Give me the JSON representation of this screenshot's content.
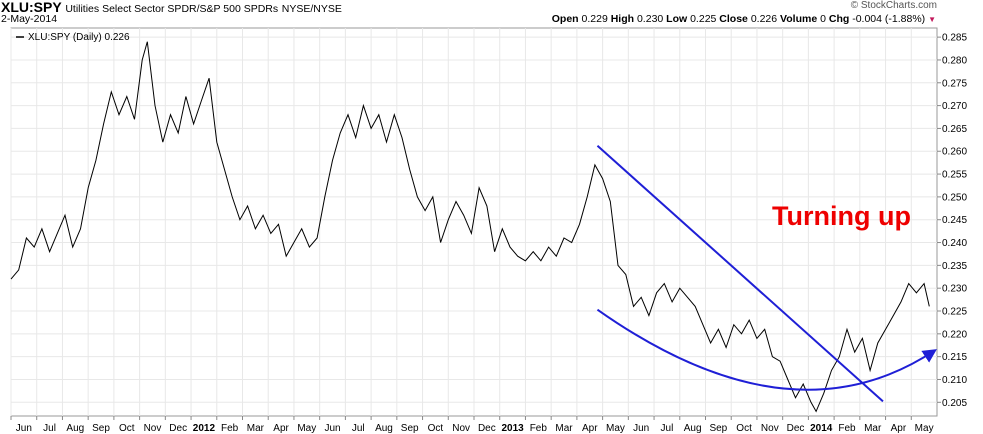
{
  "header": {
    "symbol": "XLU:SPY",
    "description": "Utilities Select Sector SPDR/S&P 500 SPDRs",
    "exchange": "NYSE/NYSE",
    "date": "2-May-2014",
    "brand": "© StockCharts.com",
    "open_label": "Open",
    "open": "0.229",
    "high_label": "High",
    "high": "0.230",
    "low_label": "Low",
    "low": "0.225",
    "close_label": "Close",
    "close": "0.226",
    "volume_label": "Volume",
    "volume": "0",
    "chg_label": "Chg",
    "chg": "-0.004 (-1.88%)"
  },
  "chart_data": {
    "type": "line",
    "legend": "XLU:SPY (Daily) 0.226",
    "annotation": "Turning up",
    "colors": {
      "line": "#000000",
      "drawn": "#1f1fd6",
      "annotation": "#ee0000",
      "grid": "#e8e8e8"
    },
    "ylim": [
      0.202,
      0.287
    ],
    "y_ticks": [
      "0.205",
      "0.210",
      "0.215",
      "0.220",
      "0.225",
      "0.230",
      "0.235",
      "0.240",
      "0.245",
      "0.250",
      "0.255",
      "0.260",
      "0.265",
      "0.270",
      "0.275",
      "0.280",
      "0.285"
    ],
    "x_ticks": [
      {
        "label": "Jun",
        "bold": false
      },
      {
        "label": "Jul",
        "bold": false
      },
      {
        "label": "Aug",
        "bold": false
      },
      {
        "label": "Sep",
        "bold": false
      },
      {
        "label": "Oct",
        "bold": false
      },
      {
        "label": "Nov",
        "bold": false
      },
      {
        "label": "Dec",
        "bold": false
      },
      {
        "label": "2012",
        "bold": true
      },
      {
        "label": "Feb",
        "bold": false
      },
      {
        "label": "Mar",
        "bold": false
      },
      {
        "label": "Apr",
        "bold": false
      },
      {
        "label": "May",
        "bold": false
      },
      {
        "label": "Jun",
        "bold": false
      },
      {
        "label": "Jul",
        "bold": false
      },
      {
        "label": "Aug",
        "bold": false
      },
      {
        "label": "Sep",
        "bold": false
      },
      {
        "label": "Oct",
        "bold": false
      },
      {
        "label": "Nov",
        "bold": false
      },
      {
        "label": "Dec",
        "bold": false
      },
      {
        "label": "2013",
        "bold": true
      },
      {
        "label": "Feb",
        "bold": false
      },
      {
        "label": "Mar",
        "bold": false
      },
      {
        "label": "Apr",
        "bold": false
      },
      {
        "label": "May",
        "bold": false
      },
      {
        "label": "Jun",
        "bold": false
      },
      {
        "label": "Jul",
        "bold": false
      },
      {
        "label": "Aug",
        "bold": false
      },
      {
        "label": "Sep",
        "bold": false
      },
      {
        "label": "Oct",
        "bold": false
      },
      {
        "label": "Nov",
        "bold": false
      },
      {
        "label": "Dec",
        "bold": false
      },
      {
        "label": "2014",
        "bold": true
      },
      {
        "label": "Feb",
        "bold": false
      },
      {
        "label": "Mar",
        "bold": false
      },
      {
        "label": "Apr",
        "bold": false
      },
      {
        "label": "May",
        "bold": false
      }
    ],
    "x_range": [
      0,
      36
    ],
    "series": [
      {
        "points": [
          [
            0.0,
            0.232
          ],
          [
            0.3,
            0.234
          ],
          [
            0.6,
            0.241
          ],
          [
            0.9,
            0.239
          ],
          [
            1.2,
            0.243
          ],
          [
            1.5,
            0.238
          ],
          [
            1.8,
            0.242
          ],
          [
            2.1,
            0.246
          ],
          [
            2.4,
            0.239
          ],
          [
            2.7,
            0.243
          ],
          [
            3.0,
            0.252
          ],
          [
            3.3,
            0.258
          ],
          [
            3.6,
            0.266
          ],
          [
            3.9,
            0.273
          ],
          [
            4.2,
            0.268
          ],
          [
            4.5,
            0.272
          ],
          [
            4.8,
            0.267
          ],
          [
            5.1,
            0.28
          ],
          [
            5.3,
            0.284
          ],
          [
            5.6,
            0.27
          ],
          [
            5.9,
            0.262
          ],
          [
            6.2,
            0.268
          ],
          [
            6.5,
            0.264
          ],
          [
            6.8,
            0.272
          ],
          [
            7.1,
            0.266
          ],
          [
            7.4,
            0.271
          ],
          [
            7.7,
            0.276
          ],
          [
            8.0,
            0.262
          ],
          [
            8.3,
            0.256
          ],
          [
            8.6,
            0.25
          ],
          [
            8.9,
            0.245
          ],
          [
            9.2,
            0.248
          ],
          [
            9.5,
            0.243
          ],
          [
            9.8,
            0.246
          ],
          [
            10.1,
            0.242
          ],
          [
            10.4,
            0.244
          ],
          [
            10.7,
            0.237
          ],
          [
            11.0,
            0.24
          ],
          [
            11.3,
            0.243
          ],
          [
            11.6,
            0.239
          ],
          [
            11.9,
            0.241
          ],
          [
            12.2,
            0.25
          ],
          [
            12.5,
            0.258
          ],
          [
            12.8,
            0.264
          ],
          [
            13.1,
            0.268
          ],
          [
            13.4,
            0.263
          ],
          [
            13.7,
            0.27
          ],
          [
            14.0,
            0.265
          ],
          [
            14.3,
            0.268
          ],
          [
            14.6,
            0.262
          ],
          [
            14.9,
            0.268
          ],
          [
            15.2,
            0.263
          ],
          [
            15.5,
            0.256
          ],
          [
            15.8,
            0.25
          ],
          [
            16.1,
            0.247
          ],
          [
            16.4,
            0.25
          ],
          [
            16.7,
            0.24
          ],
          [
            17.0,
            0.245
          ],
          [
            17.3,
            0.249
          ],
          [
            17.6,
            0.246
          ],
          [
            17.9,
            0.242
          ],
          [
            18.2,
            0.252
          ],
          [
            18.5,
            0.248
          ],
          [
            18.8,
            0.238
          ],
          [
            19.1,
            0.243
          ],
          [
            19.4,
            0.239
          ],
          [
            19.7,
            0.237
          ],
          [
            20.0,
            0.236
          ],
          [
            20.3,
            0.238
          ],
          [
            20.6,
            0.236
          ],
          [
            20.9,
            0.239
          ],
          [
            21.2,
            0.237
          ],
          [
            21.5,
            0.241
          ],
          [
            21.8,
            0.24
          ],
          [
            22.1,
            0.244
          ],
          [
            22.4,
            0.25
          ],
          [
            22.7,
            0.257
          ],
          [
            23.0,
            0.254
          ],
          [
            23.3,
            0.249
          ],
          [
            23.6,
            0.235
          ],
          [
            23.9,
            0.233
          ],
          [
            24.2,
            0.226
          ],
          [
            24.5,
            0.228
          ],
          [
            24.8,
            0.224
          ],
          [
            25.1,
            0.229
          ],
          [
            25.4,
            0.231
          ],
          [
            25.7,
            0.227
          ],
          [
            26.0,
            0.23
          ],
          [
            26.3,
            0.228
          ],
          [
            26.6,
            0.226
          ],
          [
            26.9,
            0.222
          ],
          [
            27.2,
            0.218
          ],
          [
            27.5,
            0.221
          ],
          [
            27.8,
            0.217
          ],
          [
            28.1,
            0.222
          ],
          [
            28.4,
            0.22
          ],
          [
            28.7,
            0.223
          ],
          [
            29.0,
            0.219
          ],
          [
            29.3,
            0.221
          ],
          [
            29.6,
            0.215
          ],
          [
            29.9,
            0.214
          ],
          [
            30.2,
            0.21
          ],
          [
            30.5,
            0.206
          ],
          [
            30.8,
            0.209
          ],
          [
            31.1,
            0.205
          ],
          [
            31.3,
            0.203
          ],
          [
            31.6,
            0.207
          ],
          [
            31.9,
            0.212
          ],
          [
            32.2,
            0.215
          ],
          [
            32.5,
            0.221
          ],
          [
            32.8,
            0.216
          ],
          [
            33.1,
            0.219
          ],
          [
            33.4,
            0.212
          ],
          [
            33.7,
            0.218
          ],
          [
            34.0,
            0.221
          ],
          [
            34.3,
            0.224
          ],
          [
            34.6,
            0.227
          ],
          [
            34.9,
            0.231
          ],
          [
            35.2,
            0.229
          ],
          [
            35.5,
            0.231
          ],
          [
            35.7,
            0.226
          ]
        ]
      }
    ],
    "drawn_lines": [
      {
        "kind": "line",
        "from": [
          22.8,
          0.2612
        ],
        "to": [
          33.9,
          0.2052
        ]
      },
      {
        "kind": "curve",
        "from": [
          22.8,
          0.2253
        ],
        "ctrl": [
          30.3,
          0.1955
        ],
        "to": [
          35.9,
          0.2163
        ],
        "arrow": true
      }
    ]
  }
}
